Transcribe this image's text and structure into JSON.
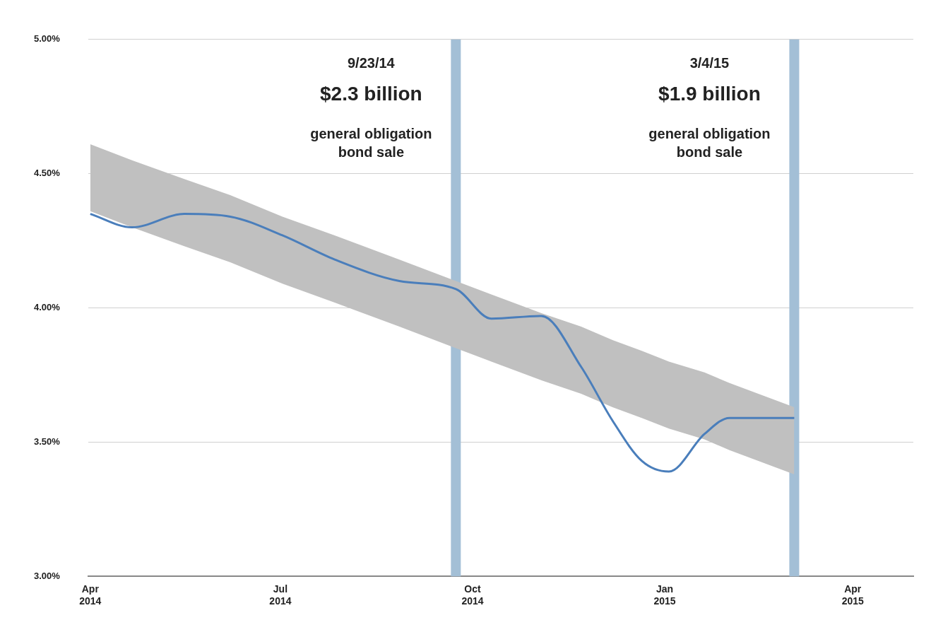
{
  "chart_data": {
    "type": "line",
    "x": [
      "2014-04-01",
      "2014-04-21",
      "2014-05-16",
      "2014-06-07",
      "2014-07-02",
      "2014-07-27",
      "2014-08-27",
      "2014-09-23",
      "2014-10-10",
      "2014-11-03",
      "2014-11-22",
      "2014-12-07",
      "2014-12-21",
      "2015-01-03",
      "2015-01-20",
      "2015-02-01",
      "2015-03-04"
    ],
    "series": [
      {
        "color": "#4a7ebb",
        "values": [
          4.35,
          4.3,
          4.35,
          4.34,
          4.27,
          4.18,
          4.1,
          4.07,
          3.96,
          3.97,
          3.78,
          3.58,
          3.43,
          3.39,
          3.53,
          3.59,
          3.59
        ],
        "lower": [
          4.36,
          4.3,
          4.23,
          4.17,
          4.09,
          4.02,
          3.93,
          3.85,
          3.8,
          3.73,
          3.68,
          3.63,
          3.59,
          3.55,
          3.51,
          3.47,
          3.38
        ],
        "upper": [
          4.61,
          4.55,
          4.48,
          4.42,
          4.34,
          4.27,
          4.18,
          4.1,
          4.05,
          3.98,
          3.93,
          3.88,
          3.84,
          3.8,
          3.76,
          3.72,
          3.63
        ]
      }
    ],
    "xlim": [
      "2014-03-31",
      "2015-04-30"
    ],
    "xticks": [
      {
        "value": "2014-04-01",
        "label": "Apr 2014"
      },
      {
        "value": "2014-07-01",
        "label": "Jul 2014"
      },
      {
        "value": "2014-10-01",
        "label": "Oct 2014"
      },
      {
        "value": "2015-01-01",
        "label": "Jan 2015"
      },
      {
        "value": "2015-04-01",
        "label": "Apr 2015"
      }
    ],
    "ylim": [
      3,
      5
    ],
    "yticks": [
      {
        "value": 3,
        "label": "3.00%"
      },
      {
        "value": 3.5,
        "label": "3.50%"
      },
      {
        "value": 4,
        "label": "4.00%"
      },
      {
        "value": 4.5,
        "label": "4.50%"
      },
      {
        "value": 5,
        "label": "5.00%"
      }
    ],
    "ref_lines": [
      {
        "axis": "x",
        "value": "2014-09-23",
        "color": "#a3bfd6"
      },
      {
        "axis": "x",
        "value": "2015-03-04",
        "color": "#a3bfd6"
      }
    ],
    "annotations": [
      "9/23/14",
      "$2.3 billion",
      "general obligation bond sale",
      "3/4/15",
      "$1.9 billion",
      "general obligation bond sale"
    ],
    "grid": "y",
    "legend": false,
    "marker": "none",
    "line_style": "solid"
  }
}
